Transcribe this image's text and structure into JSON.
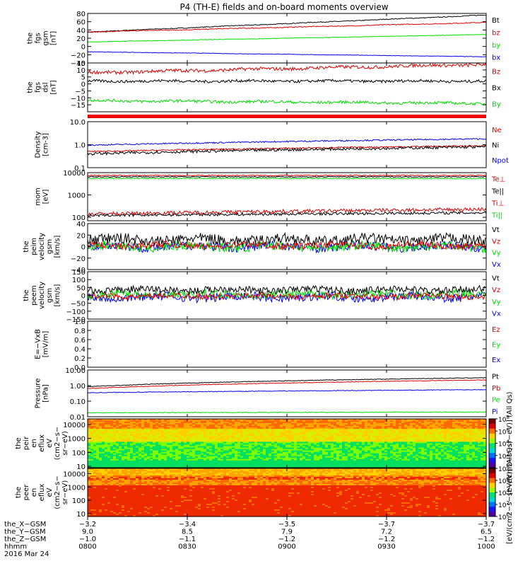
{
  "title": "P4 (TH-E) fields and on-board moments overview",
  "colors": {
    "black": "#000000",
    "red": "#dd0000",
    "green": "#00dd00",
    "blue": "#0000ee"
  },
  "chart_data": [
    {
      "type": "line",
      "ylabel": [
        "the",
        "fgs",
        "gsm",
        "[nT]"
      ],
      "yticks": [
        "80",
        "60",
        "40",
        "20",
        "0",
        "−20",
        "−40"
      ],
      "ylim": [
        -40,
        80
      ],
      "legend": [
        {
          "name": "Bt",
          "color": "black"
        },
        {
          "name": "bz",
          "color": "red"
        },
        {
          "name": "by",
          "color": "green"
        },
        {
          "name": "bx",
          "color": "blue"
        }
      ],
      "series": [
        {
          "name": "Bt",
          "color": "black",
          "start": 35,
          "end": 76,
          "noise": 1
        },
        {
          "name": "bz",
          "color": "red",
          "start": 35,
          "end": 58,
          "noise": 1
        },
        {
          "name": "by",
          "color": "green",
          "start": 11,
          "end": 29,
          "noise": 0.6
        },
        {
          "name": "bx",
          "color": "blue",
          "start": -13,
          "end": -25,
          "noise": 0.5
        }
      ]
    },
    {
      "type": "line",
      "ylabel": [
        "the",
        "fgs",
        "dsl",
        "[nT]"
      ],
      "yticks": [
        "15",
        "10",
        "5",
        "0",
        "−5",
        "−10",
        "−15"
      ],
      "ylim": [
        -20,
        15
      ],
      "legend": [
        {
          "name": "Bz",
          "color": "red"
        },
        {
          "name": "Bx",
          "color": "black"
        },
        {
          "name": "By",
          "color": "green"
        }
      ],
      "series": [
        {
          "name": "Bz",
          "color": "red",
          "start": 8,
          "end": 14,
          "noise": 1.2
        },
        {
          "name": "Bx",
          "color": "black",
          "start": 2,
          "end": 2,
          "noise": 1
        },
        {
          "name": "By",
          "color": "green",
          "start": -12,
          "end": -14,
          "noise": 1
        }
      ]
    },
    {
      "type": "line",
      "scale": "log",
      "ylabel": [
        "Density",
        "[cm-3]"
      ],
      "yticks": [
        "10.0",
        "1.0",
        "0.1"
      ],
      "ylim": [
        0.1,
        10
      ],
      "legend": [
        {
          "name": "Ne",
          "color": "red"
        },
        {
          "name": "Ni",
          "color": "black"
        },
        {
          "name": "Npot",
          "color": "blue"
        }
      ],
      "series": [
        {
          "name": "Npot",
          "color": "blue",
          "start": 0.95,
          "end": 1.8,
          "noise": 0.03
        },
        {
          "name": "Ne",
          "color": "red",
          "start": 0.5,
          "end": 0.9,
          "noise": 0.03
        },
        {
          "name": "Ni",
          "color": "black",
          "start": 0.4,
          "end": 0.8,
          "noise": 0.06
        }
      ]
    },
    {
      "type": "line",
      "scale": "log",
      "ylabel": [
        "mom",
        "[eV]"
      ],
      "yticks": [
        "10000",
        "1000",
        "100"
      ],
      "ylim": [
        70,
        10000
      ],
      "legend": [
        {
          "name": "Te⊥",
          "color": "red"
        },
        {
          "name": "Te||",
          "color": "black"
        },
        {
          "name": "Ti⊥",
          "color": "red"
        },
        {
          "name": "Ti||",
          "color": "green"
        }
      ],
      "series": [
        {
          "name": "Te⊥",
          "color": "red",
          "start": 7500,
          "end": 7500,
          "noise": 0.02
        },
        {
          "name": "Te||",
          "color": "black",
          "start": 6500,
          "end": 6500,
          "noise": 0.02
        },
        {
          "name": "Ti||",
          "color": "green",
          "start": 5500,
          "end": 5400,
          "noise": 0.02
        },
        {
          "name": "Ti⊥",
          "color": "red",
          "start": 140,
          "end": 230,
          "noise": 0.08
        },
        {
          "name": "Ti⊥b",
          "color": "black",
          "start": 120,
          "end": 160,
          "noise": 0.06
        }
      ]
    },
    {
      "type": "line",
      "ylabel": [
        "the",
        "peim",
        "velocity",
        "gsm",
        "[km/s]"
      ],
      "yticks": [
        "40",
        "20",
        "0",
        "−20",
        "−40"
      ],
      "ylim": [
        -40,
        40
      ],
      "legend": [
        {
          "name": "Vt",
          "color": "black"
        },
        {
          "name": "Vz",
          "color": "red"
        },
        {
          "name": "Vy",
          "color": "green"
        },
        {
          "name": "Vx",
          "color": "blue"
        }
      ],
      "series": [
        {
          "name": "Vx",
          "color": "blue",
          "start": 0,
          "end": 0,
          "noise": 8
        },
        {
          "name": "Vy",
          "color": "green",
          "start": 0,
          "end": 0,
          "noise": 8
        },
        {
          "name": "Vt",
          "color": "black",
          "start": 12,
          "end": 12,
          "noise": 9
        },
        {
          "name": "Vz",
          "color": "red",
          "start": 2,
          "end": 2,
          "noise": 6
        }
      ]
    },
    {
      "type": "line",
      "ylabel": [
        "the",
        "peem",
        "velocity",
        "gsm",
        "[km/s]"
      ],
      "yticks": [
        "150",
        "100",
        "50",
        "0",
        "−50",
        "−100",
        "−150"
      ],
      "ylim": [
        -150,
        150
      ],
      "legend": [
        {
          "name": "Vt",
          "color": "black"
        },
        {
          "name": "Vz",
          "color": "red"
        },
        {
          "name": "Vy",
          "color": "green"
        },
        {
          "name": "Vx",
          "color": "blue"
        }
      ],
      "series": [
        {
          "name": "Vx",
          "color": "blue",
          "start": -10,
          "end": -10,
          "noise": 28
        },
        {
          "name": "Vy",
          "color": "green",
          "start": 5,
          "end": 5,
          "noise": 25
        },
        {
          "name": "Vt",
          "color": "black",
          "start": 35,
          "end": 35,
          "noise": 22
        },
        {
          "name": "Vz",
          "color": "red",
          "start": -5,
          "end": -5,
          "noise": 18
        }
      ]
    },
    {
      "type": "line",
      "ylabel": [
        "E=−VxB",
        "[mV/m]"
      ],
      "yticks": [
        "1.0",
        "0.8",
        "0.6",
        "0.4",
        "0.2",
        "0.0"
      ],
      "ylim": [
        0,
        1
      ],
      "legend": [
        {
          "name": "Ez",
          "color": "red"
        },
        {
          "name": "Ey",
          "color": "green"
        },
        {
          "name": "Ex",
          "color": "blue"
        }
      ],
      "series": []
    },
    {
      "type": "line",
      "scale": "log",
      "ylabel": [
        "Pressure",
        "[nPa]"
      ],
      "yticks": [
        "10.00",
        "1.00",
        "0.10",
        "0.01"
      ],
      "ylim": [
        0.01,
        10
      ],
      "legend": [
        {
          "name": "Pt",
          "color": "black"
        },
        {
          "name": "Pb",
          "color": "red"
        },
        {
          "name": "Pe",
          "color": "green"
        },
        {
          "name": "Pi",
          "color": "blue"
        }
      ],
      "series": [
        {
          "name": "Pt",
          "color": "black",
          "start": 0.85,
          "end": 3.2,
          "noise": 0.02
        },
        {
          "name": "Pb",
          "color": "red",
          "start": 0.65,
          "end": 2.3,
          "noise": 0.02
        },
        {
          "name": "Pi",
          "color": "blue",
          "start": 0.35,
          "end": 0.55,
          "noise": 0.02
        },
        {
          "name": "Pe",
          "color": "green",
          "start": 0.018,
          "end": 0.02,
          "noise": 0.02
        }
      ]
    },
    {
      "type": "heatmap",
      "ylabel": [
        "the",
        "peir",
        "en",
        "eflux",
        "eV",
        "(cm2−s−",
        "sr−eV)"
      ],
      "yticks": [
        "10000",
        "1000",
        "100",
        "10"
      ],
      "ylim": [
        8,
        25000
      ],
      "zlim": [
        1,
        100000000
      ],
      "zlabel": "[eV/(cm2−s−sr−eV)] (All Qs)",
      "ztick_exps": [
        "8",
        "6",
        "4",
        "2"
      ]
    },
    {
      "type": "heatmap",
      "ylabel": [
        "the",
        "peer",
        "en",
        "eflux",
        "eV",
        "(cm2−s−",
        "sr−eV)"
      ],
      "yticks": [
        "10000",
        "1000",
        "100",
        "10"
      ],
      "ylim": [
        6,
        25000
      ],
      "zlim": [
        1,
        100000000
      ],
      "zlabel": "[eV/(cm2−s−sr−eV)] (All Qs)",
      "ztick_exps": [
        "8",
        "6",
        "4",
        "2",
        "0"
      ]
    }
  ],
  "xaxis": {
    "row_labels": [
      "the_X−GSM",
      "the_Y−GSM",
      "the_Z−GSM",
      "hhmm",
      "2016 Mar 24"
    ],
    "ticks": [
      {
        "values": [
          "−3.2",
          "9.0",
          "−1.0",
          "0800"
        ]
      },
      {
        "values": [
          "−3.4",
          "8.5",
          "−1.1",
          "0830"
        ]
      },
      {
        "values": [
          "−3.5",
          "7.9",
          "−1.2",
          "0900"
        ]
      },
      {
        "values": [
          "−3.7",
          "7.2",
          "−1.2",
          "0930"
        ]
      },
      {
        "values": [
          "−3.7",
          "6.5",
          "−1.2",
          "1000"
        ]
      }
    ]
  }
}
